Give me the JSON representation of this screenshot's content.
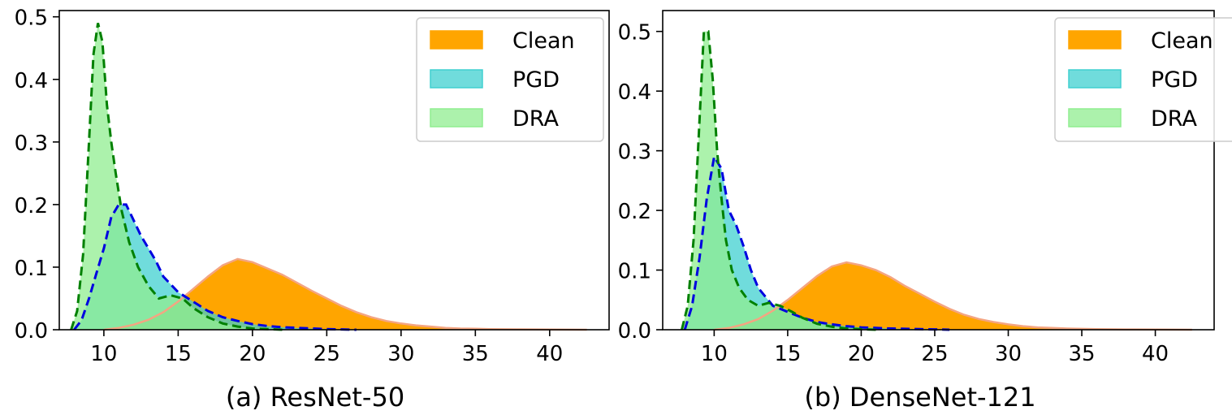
{
  "figure": {
    "panels": [
      {
        "caption": "(a) ResNet-50"
      },
      {
        "caption": "(b) DenseNet-121"
      }
    ]
  },
  "chart_data": [
    {
      "type": "area",
      "title": "",
      "caption": "(a) ResNet-50",
      "xlabel": "",
      "ylabel": "",
      "xlim": [
        7.0,
        44.0
      ],
      "ylim": [
        0,
        0.51
      ],
      "x_ticks": [
        10,
        15,
        20,
        25,
        30,
        35,
        40
      ],
      "y_ticks": [
        0.0,
        0.1,
        0.2,
        0.3,
        0.4,
        0.5
      ],
      "grid": false,
      "legend": "top-right",
      "series": [
        {
          "name": "Clean",
          "fill": "#ffa500",
          "line": "#f4a582",
          "x": [
            10,
            11,
            12,
            13,
            14,
            15,
            16,
            17,
            18,
            19,
            20,
            21,
            22,
            23,
            24,
            25,
            26,
            27,
            28,
            29,
            30,
            31,
            32,
            33,
            34,
            35,
            36,
            38,
            40,
            42.5
          ],
          "y": [
            0.0,
            0.003,
            0.008,
            0.016,
            0.028,
            0.045,
            0.065,
            0.085,
            0.103,
            0.113,
            0.108,
            0.098,
            0.088,
            0.075,
            0.062,
            0.05,
            0.038,
            0.028,
            0.02,
            0.014,
            0.01,
            0.007,
            0.005,
            0.003,
            0.002,
            0.0015,
            0.001,
            0.0006,
            0.0003,
            0.0
          ]
        },
        {
          "name": "PGD",
          "fill": "#40d0d0",
          "line": "#0000e0",
          "x": [
            8,
            8.5,
            9,
            9.5,
            10,
            10.5,
            11,
            11.5,
            12,
            12.5,
            13,
            13.5,
            14,
            15,
            16,
            17,
            18,
            19,
            20,
            21,
            22,
            23,
            24,
            25,
            26,
            27
          ],
          "y": [
            0.0,
            0.015,
            0.05,
            0.09,
            0.13,
            0.18,
            0.2,
            0.2,
            0.175,
            0.15,
            0.13,
            0.11,
            0.085,
            0.06,
            0.045,
            0.03,
            0.02,
            0.014,
            0.009,
            0.006,
            0.004,
            0.003,
            0.002,
            0.001,
            0.0005,
            0.0
          ]
        },
        {
          "name": "DRA",
          "fill": "#90ee90",
          "line": "#008000",
          "x": [
            7.8,
            8.2,
            8.6,
            9,
            9.3,
            9.6,
            9.9,
            10.2,
            10.5,
            10.8,
            11.2,
            11.7,
            12.3,
            13,
            13.7,
            14.5,
            15.3,
            16,
            17,
            18,
            19,
            20,
            21,
            22
          ],
          "y": [
            0.0,
            0.03,
            0.12,
            0.3,
            0.44,
            0.49,
            0.46,
            0.36,
            0.3,
            0.25,
            0.19,
            0.14,
            0.1,
            0.07,
            0.05,
            0.055,
            0.05,
            0.035,
            0.02,
            0.01,
            0.005,
            0.002,
            0.001,
            0.0
          ]
        }
      ]
    },
    {
      "type": "area",
      "title": "",
      "caption": "(b) DenseNet-121",
      "xlabel": "",
      "ylabel": "",
      "xlim": [
        6.5,
        44.0
      ],
      "ylim": [
        0,
        0.535
      ],
      "x_ticks": [
        10,
        15,
        20,
        25,
        30,
        35,
        40
      ],
      "y_ticks": [
        0.0,
        0.1,
        0.2,
        0.3,
        0.4,
        0.5
      ],
      "grid": false,
      "legend": "top-right",
      "series": [
        {
          "name": "Clean",
          "fill": "#ffa500",
          "line": "#f4a582",
          "x": [
            10,
            11,
            12,
            13,
            14,
            15,
            16,
            17,
            18,
            19,
            20,
            21,
            22,
            23,
            24,
            25,
            26,
            27,
            28,
            29,
            30,
            31,
            32,
            33,
            34,
            35,
            36,
            38,
            40,
            42.5
          ],
          "y": [
            0.0,
            0.003,
            0.009,
            0.018,
            0.032,
            0.05,
            0.07,
            0.09,
            0.106,
            0.113,
            0.108,
            0.1,
            0.088,
            0.073,
            0.06,
            0.047,
            0.035,
            0.025,
            0.018,
            0.013,
            0.009,
            0.006,
            0.004,
            0.003,
            0.002,
            0.0015,
            0.001,
            0.0006,
            0.0003,
            0.0
          ]
        },
        {
          "name": "PGD",
          "fill": "#40d0d0",
          "line": "#0000e0",
          "x": [
            8,
            8.5,
            9,
            9.5,
            10,
            10.5,
            11,
            11.5,
            12,
            12.5,
            13,
            13.5,
            14,
            15,
            16,
            17,
            18,
            19,
            20,
            21,
            22,
            23,
            24,
            25,
            26
          ],
          "y": [
            0.0,
            0.04,
            0.12,
            0.22,
            0.29,
            0.27,
            0.2,
            0.175,
            0.14,
            0.1,
            0.07,
            0.055,
            0.04,
            0.03,
            0.02,
            0.013,
            0.009,
            0.006,
            0.004,
            0.003,
            0.002,
            0.0015,
            0.001,
            0.0005,
            0.0
          ]
        },
        {
          "name": "DRA",
          "fill": "#90ee90",
          "line": "#008000",
          "x": [
            7.8,
            8.2,
            8.6,
            9,
            9.3,
            9.6,
            9.9,
            10.2,
            10.5,
            10.8,
            11.2,
            11.7,
            12.3,
            13,
            13.7,
            14.5,
            15.3,
            16,
            17,
            18,
            19,
            20,
            21
          ],
          "y": [
            0.0,
            0.04,
            0.15,
            0.35,
            0.5,
            0.5,
            0.42,
            0.3,
            0.22,
            0.15,
            0.1,
            0.07,
            0.05,
            0.04,
            0.045,
            0.04,
            0.03,
            0.02,
            0.01,
            0.005,
            0.002,
            0.001,
            0.0
          ]
        }
      ]
    }
  ]
}
